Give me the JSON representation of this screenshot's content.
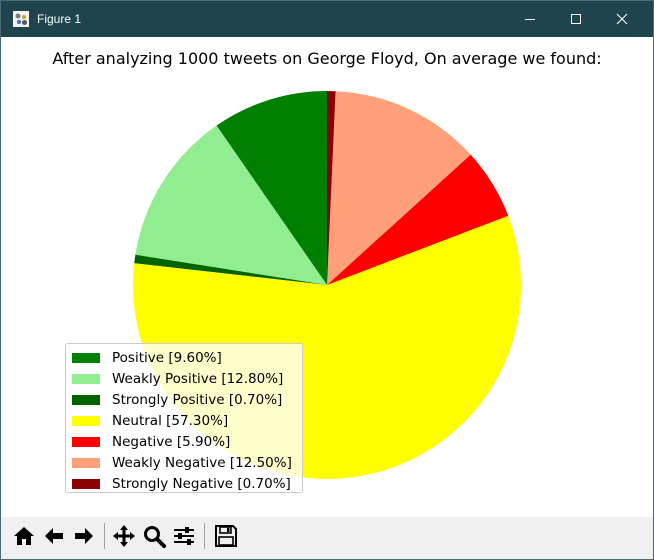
{
  "window": {
    "title": "Figure 1",
    "icons": [
      "matplotlib-icon",
      "minimize-icon",
      "maximize-icon",
      "close-icon"
    ]
  },
  "toolbar": {
    "buttons": [
      {
        "name": "home",
        "icon": "home-icon"
      },
      {
        "name": "back",
        "icon": "arrow-left-icon"
      },
      {
        "name": "forward",
        "icon": "arrow-right-icon"
      },
      {
        "name": "pan",
        "icon": "move-icon"
      },
      {
        "name": "zoom",
        "icon": "magnifier-icon"
      },
      {
        "name": "subplots",
        "icon": "sliders-icon"
      },
      {
        "name": "save",
        "icon": "floppy-disk-icon"
      }
    ]
  },
  "chart_data": {
    "type": "pie",
    "title": "After analyzing 1000 tweets on George Floyd, On average we found:",
    "start_angle_deg": 90,
    "direction": "counterclockwise",
    "legend_location": "lower-left",
    "slices": [
      {
        "label": "Positive [9.60%]",
        "value": 9.6,
        "color": "#008000"
      },
      {
        "label": "Weakly Positive [12.80%]",
        "value": 12.8,
        "color": "#90ee90"
      },
      {
        "label": "Strongly Positive [0.70%]",
        "value": 0.7,
        "color": "#006400"
      },
      {
        "label": "Neutral [57.30%]",
        "value": 57.3,
        "color": "#ffff00"
      },
      {
        "label": "Negative [5.90%]",
        "value": 5.9,
        "color": "#ff0000"
      },
      {
        "label": "Weakly Negative [12.50%]",
        "value": 12.5,
        "color": "#ffa07a"
      },
      {
        "label": "Strongly Negative [0.70%]",
        "value": 0.7,
        "color": "#8b0000"
      }
    ]
  }
}
